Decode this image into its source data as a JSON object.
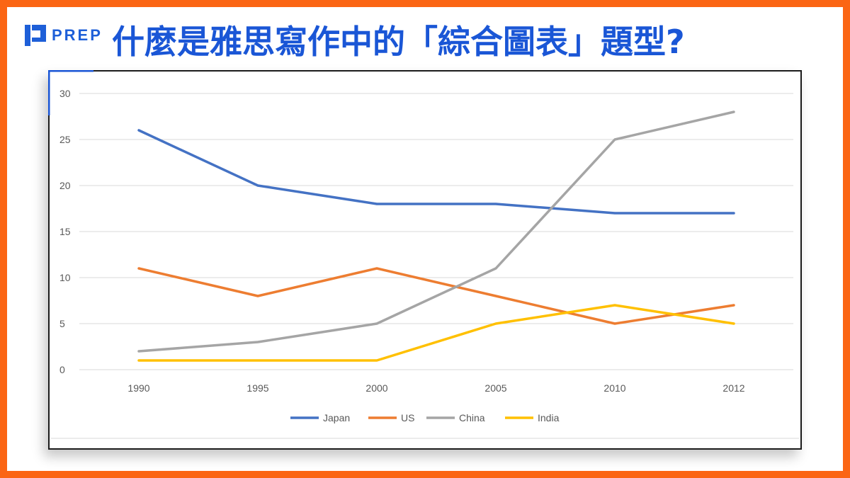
{
  "branding": {
    "logo_text": "PREP",
    "accent": "#fb6514",
    "brand_blue": "#1a56d6"
  },
  "headline": "什麼是雅思寫作中的「綜合圖表」題型?",
  "chart_data": {
    "type": "line",
    "categories": [
      "1990",
      "1995",
      "2000",
      "2005",
      "2010",
      "2012"
    ],
    "ylim": [
      0,
      30
    ],
    "yticks": [
      0,
      5,
      10,
      15,
      20,
      25,
      30
    ],
    "grid": true,
    "legend_position": "bottom",
    "series": [
      {
        "name": "Japan",
        "color": "#4472c4",
        "values": [
          26,
          20,
          18,
          18,
          17,
          17
        ]
      },
      {
        "name": "US",
        "color": "#ed7d31",
        "values": [
          11,
          8,
          11,
          8,
          5,
          7
        ]
      },
      {
        "name": "China",
        "color": "#a5a5a5",
        "values": [
          2,
          3,
          5,
          11,
          25,
          28
        ]
      },
      {
        "name": "India",
        "color": "#ffc000",
        "values": [
          1,
          1,
          1,
          5,
          7,
          5
        ]
      }
    ]
  }
}
